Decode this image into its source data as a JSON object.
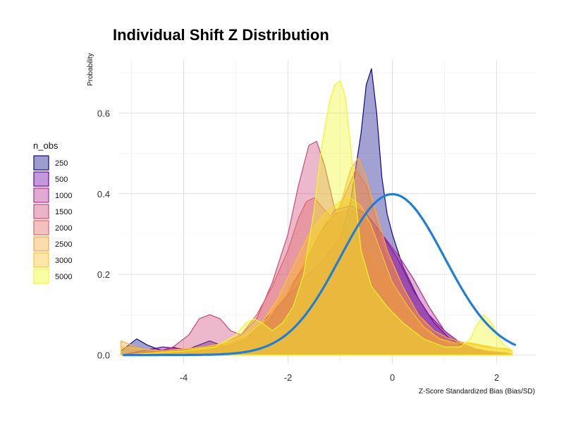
{
  "chart_data": {
    "type": "area",
    "title": "Individual Shift Z Distribution",
    "xlabel": "Z-Score Standardized Bias (Bias/SD)",
    "ylabel": "Probability",
    "xlim": [
      -5.25,
      2.75
    ],
    "ylim": [
      -0.02,
      0.73
    ],
    "x_ticks": [
      -4,
      -2,
      0,
      2
    ],
    "x_tick_labels": [
      "-4",
      "-2",
      "0",
      "2"
    ],
    "y_ticks": [
      0.0,
      0.2,
      0.4,
      0.6
    ],
    "y_tick_labels": [
      "0.0",
      "0.2",
      "0.4",
      "0.6"
    ],
    "grid": true,
    "legend": {
      "title": "n_obs",
      "position": "left"
    },
    "series": [
      {
        "name": "250",
        "color": "#0d0887",
        "x": [
          -5.2,
          -4.9,
          -4.7,
          -4.4,
          -4.2,
          -4.0,
          -3.8,
          -3.5,
          -3.2,
          -2.8,
          -2.5,
          -2.2,
          -1.9,
          -1.6,
          -1.3,
          -1.0,
          -0.8,
          -0.6,
          -0.5,
          -0.4,
          -0.3,
          -0.2,
          -0.1,
          0.0,
          0.2,
          0.5,
          0.8,
          1.1,
          1.4,
          1.7,
          2.0,
          2.3
        ],
        "y": [
          0.01,
          0.04,
          0.025,
          0.01,
          0.02,
          0.01,
          0.02,
          0.035,
          0.02,
          0.04,
          0.08,
          0.12,
          0.16,
          0.2,
          0.24,
          0.29,
          0.38,
          0.55,
          0.67,
          0.71,
          0.6,
          0.44,
          0.35,
          0.3,
          0.22,
          0.14,
          0.08,
          0.04,
          0.02,
          0.01,
          0.005,
          0.0
        ]
      },
      {
        "name": "500",
        "color": "#6a00a8",
        "x": [
          -5.2,
          -4.8,
          -4.4,
          -4.0,
          -3.6,
          -3.2,
          -2.8,
          -2.4,
          -2.0,
          -1.7,
          -1.4,
          -1.1,
          -0.8,
          -0.5,
          -0.2,
          0.1,
          0.4,
          0.7,
          1.0,
          1.3,
          1.6,
          2.0,
          2.3
        ],
        "y": [
          0.0,
          0.01,
          0.02,
          0.015,
          0.01,
          0.02,
          0.04,
          0.08,
          0.15,
          0.22,
          0.3,
          0.36,
          0.37,
          0.35,
          0.3,
          0.24,
          0.16,
          0.1,
          0.06,
          0.03,
          0.015,
          0.005,
          0.0
        ]
      },
      {
        "name": "1000",
        "color": "#b12a90",
        "x": [
          -5.2,
          -4.8,
          -4.4,
          -4.0,
          -3.6,
          -3.2,
          -2.8,
          -2.4,
          -2.0,
          -1.7,
          -1.4,
          -1.1,
          -0.8,
          -0.5,
          -0.2,
          0.1,
          0.4,
          0.7,
          1.0,
          1.3,
          1.6,
          2.0,
          2.3
        ],
        "y": [
          0.0,
          0.005,
          0.01,
          0.015,
          0.02,
          0.03,
          0.05,
          0.09,
          0.16,
          0.22,
          0.3,
          0.35,
          0.36,
          0.33,
          0.3,
          0.25,
          0.19,
          0.12,
          0.06,
          0.03,
          0.015,
          0.005,
          0.0
        ]
      },
      {
        "name": "1500",
        "color": "#cc4778",
        "x": [
          -5.2,
          -4.6,
          -4.2,
          -3.9,
          -3.7,
          -3.5,
          -3.3,
          -3.1,
          -2.9,
          -2.6,
          -2.3,
          -2.0,
          -1.8,
          -1.6,
          -1.45,
          -1.3,
          -1.1,
          -0.9,
          -0.7,
          -0.4,
          -0.1,
          0.2,
          0.5,
          0.8,
          1.2,
          1.6,
          2.0,
          2.3
        ],
        "y": [
          0.0,
          0.005,
          0.02,
          0.05,
          0.09,
          0.1,
          0.09,
          0.06,
          0.05,
          0.09,
          0.18,
          0.3,
          0.42,
          0.52,
          0.53,
          0.47,
          0.36,
          0.3,
          0.28,
          0.25,
          0.19,
          0.13,
          0.08,
          0.05,
          0.02,
          0.01,
          0.005,
          0.0
        ]
      },
      {
        "name": "2000",
        "color": "#e16462",
        "x": [
          -5.2,
          -4.6,
          -4.0,
          -3.6,
          -3.2,
          -2.9,
          -2.6,
          -2.3,
          -2.0,
          -1.8,
          -1.65,
          -1.5,
          -1.3,
          -1.1,
          -0.9,
          -0.7,
          -0.5,
          -0.3,
          -0.1,
          0.2,
          0.5,
          0.8,
          1.1,
          1.4,
          1.8,
          2.2,
          2.3
        ],
        "y": [
          0.0,
          0.005,
          0.01,
          0.02,
          0.03,
          0.05,
          0.1,
          0.17,
          0.26,
          0.34,
          0.38,
          0.39,
          0.36,
          0.33,
          0.4,
          0.46,
          0.42,
          0.33,
          0.25,
          0.17,
          0.1,
          0.05,
          0.03,
          0.02,
          0.01,
          0.005,
          0.0
        ]
      },
      {
        "name": "2500",
        "color": "#fca636",
        "x": [
          -5.2,
          -4.8,
          -4.4,
          -4.0,
          -3.6,
          -3.2,
          -2.8,
          -2.4,
          -2.0,
          -1.7,
          -1.4,
          -1.2,
          -1.0,
          -0.8,
          -0.65,
          -0.5,
          -0.3,
          -0.1,
          0.2,
          0.5,
          0.8,
          1.1,
          1.4,
          1.8,
          2.2,
          2.3
        ],
        "y": [
          0.035,
          0.015,
          0.01,
          0.015,
          0.02,
          0.03,
          0.05,
          0.09,
          0.16,
          0.24,
          0.31,
          0.34,
          0.37,
          0.46,
          0.49,
          0.44,
          0.35,
          0.26,
          0.17,
          0.1,
          0.06,
          0.04,
          0.03,
          0.02,
          0.015,
          0.01
        ]
      },
      {
        "name": "3000",
        "color": "#fdc328",
        "x": [
          -5.2,
          -4.8,
          -4.4,
          -4.0,
          -3.6,
          -3.2,
          -2.8,
          -2.5,
          -2.2,
          -1.9,
          -1.6,
          -1.3,
          -1.0,
          -0.8,
          -0.6,
          -0.4,
          -0.2,
          0.0,
          0.3,
          0.6,
          0.9,
          1.2,
          1.5,
          1.9,
          2.3
        ],
        "y": [
          0.02,
          0.015,
          0.01,
          0.015,
          0.02,
          0.03,
          0.05,
          0.08,
          0.14,
          0.22,
          0.3,
          0.35,
          0.38,
          0.39,
          0.37,
          0.32,
          0.25,
          0.18,
          0.12,
          0.07,
          0.04,
          0.03,
          0.03,
          0.02,
          0.01
        ]
      },
      {
        "name": "5000",
        "color": "#f0f921",
        "x": [
          -5.2,
          -4.6,
          -4.0,
          -3.4,
          -3.0,
          -2.8,
          -2.65,
          -2.5,
          -2.3,
          -2.1,
          -1.9,
          -1.7,
          -1.5,
          -1.35,
          -1.2,
          -1.1,
          -1.0,
          -0.9,
          -0.8,
          -0.7,
          -0.6,
          -0.4,
          -0.1,
          0.2,
          0.6,
          1.0,
          1.3,
          1.5,
          1.6,
          1.75,
          1.9,
          2.1,
          2.3
        ],
        "y": [
          0.0,
          0.005,
          0.01,
          0.02,
          0.05,
          0.08,
          0.09,
          0.08,
          0.06,
          0.08,
          0.12,
          0.2,
          0.36,
          0.52,
          0.63,
          0.67,
          0.68,
          0.64,
          0.52,
          0.38,
          0.26,
          0.17,
          0.12,
          0.08,
          0.04,
          0.02,
          0.02,
          0.04,
          0.07,
          0.1,
          0.08,
          0.03,
          0.01
        ]
      }
    ],
    "reference_curve": {
      "type": "normal",
      "mean": 0,
      "sd": 1,
      "color": "#1f7fd4"
    }
  }
}
